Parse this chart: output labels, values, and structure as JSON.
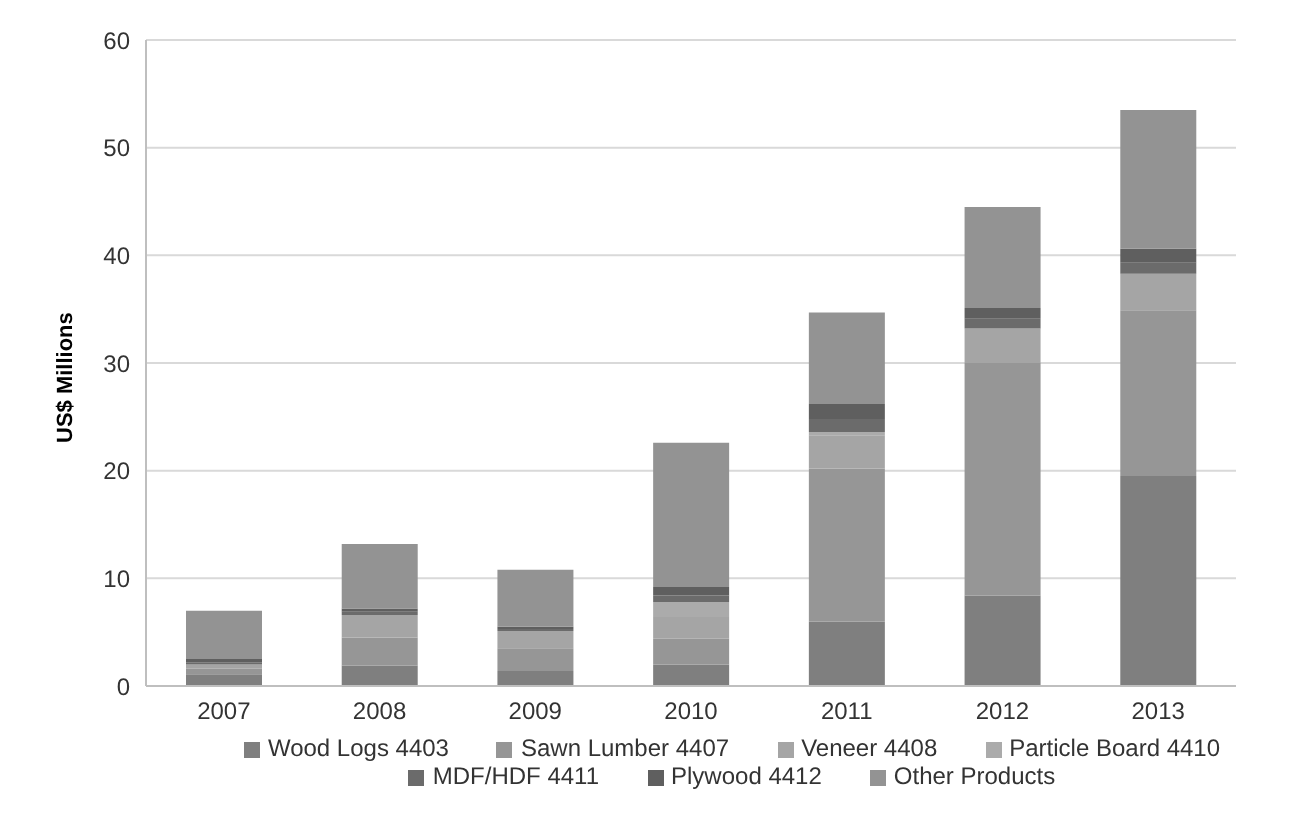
{
  "chart_data": {
    "type": "bar",
    "stacked": true,
    "ylabel": "US$ Millions",
    "categories": [
      "2007",
      "2008",
      "2009",
      "2010",
      "2011",
      "2012",
      "2013"
    ],
    "series": [
      {
        "name": "Wood Logs 4403",
        "color": "#7f7f7f",
        "values": [
          1.1,
          1.9,
          1.4,
          2.0,
          6.0,
          8.4,
          19.5
        ]
      },
      {
        "name": "Sawn Lumber 4407",
        "color": "#969696",
        "values": [
          0.5,
          2.6,
          2.1,
          2.4,
          14.2,
          21.6,
          15.4
        ]
      },
      {
        "name": "Veneer 4408",
        "color": "#a5a5a5",
        "values": [
          0.4,
          2.1,
          1.6,
          2.0,
          3.1,
          3.2,
          3.4
        ]
      },
      {
        "name": "Particle Board 4410",
        "color": "#ababab",
        "values": [
          null,
          null,
          null,
          1.4,
          0.3,
          null,
          null
        ]
      },
      {
        "name": "MDF/HDF 4411",
        "color": "#6b6b6b",
        "values": [
          0.2,
          0.3,
          0.2,
          0.6,
          1.2,
          0.9,
          1.0
        ]
      },
      {
        "name": "Plywood 4412",
        "color": "#5f5f5f",
        "values": [
          0.3,
          0.3,
          0.2,
          0.8,
          1.4,
          1.0,
          1.3
        ]
      },
      {
        "name": "Other Products",
        "color": "#939393",
        "values": [
          4.5,
          6.0,
          5.3,
          13.4,
          8.5,
          9.4,
          12.9
        ]
      }
    ],
    "ylim": [
      0,
      60
    ],
    "yticks": [
      0,
      10,
      20,
      30,
      40,
      50,
      60
    ],
    "grid": "y",
    "legend": "bottom"
  }
}
